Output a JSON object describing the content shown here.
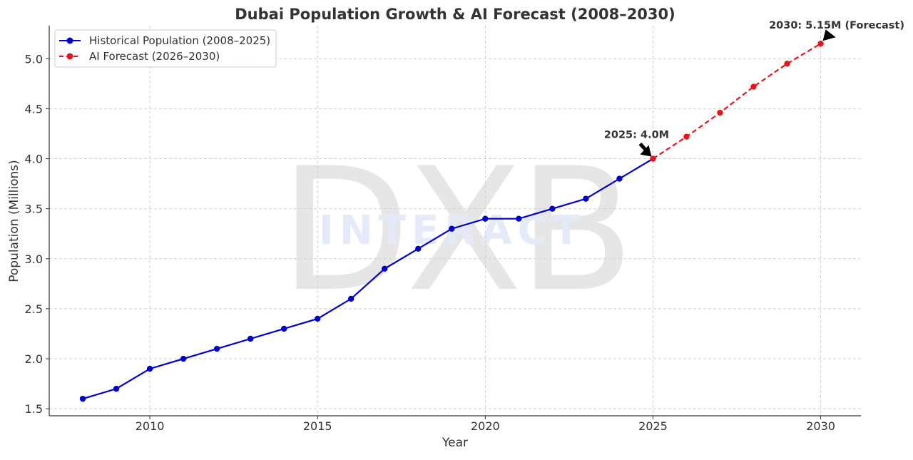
{
  "chart_data": {
    "type": "line",
    "title": "Dubai Population Growth & AI Forecast (2008–2030)",
    "xlabel": "Year",
    "ylabel": "Population (Millions)",
    "xlim": [
      2007.0,
      2031.2
    ],
    "ylim": [
      1.43,
      5.33
    ],
    "xticks": [
      2010,
      2015,
      2020,
      2025,
      2030
    ],
    "xtick_labels": [
      "2010",
      "2015",
      "2020",
      "2025",
      "2030"
    ],
    "yticks": [
      1.5,
      2.0,
      2.5,
      3.0,
      3.5,
      4.0,
      4.5,
      5.0
    ],
    "ytick_labels": [
      "1.5",
      "2.0",
      "2.5",
      "3.0",
      "3.5",
      "4.0",
      "4.5",
      "5.0"
    ],
    "grid": true,
    "legend_position": "top-left",
    "series": [
      {
        "name": "Historical Population (2008–2025)",
        "color": "#0000cc",
        "style": "solid",
        "x": [
          2008,
          2009,
          2010,
          2011,
          2012,
          2013,
          2014,
          2015,
          2016,
          2017,
          2018,
          2019,
          2020,
          2021,
          2022,
          2023,
          2024,
          2025
        ],
        "y": [
          1.6,
          1.7,
          1.9,
          2.0,
          2.1,
          2.2,
          2.3,
          2.4,
          2.6,
          2.9,
          3.1,
          3.3,
          3.4,
          3.4,
          3.5,
          3.6,
          3.8,
          4.0
        ]
      },
      {
        "name": "AI Forecast (2026–2030)",
        "color": "#e8141b",
        "style": "dashed",
        "x": [
          2025,
          2026,
          2027,
          2028,
          2029,
          2030
        ],
        "y": [
          4.0,
          4.22,
          4.46,
          4.72,
          4.95,
          5.15
        ]
      }
    ],
    "annotations": [
      {
        "text": "2025: 4.0M",
        "x": 2025,
        "y": 4.0
      },
      {
        "text": "2030: 5.15M (Forecast)",
        "x": 2030,
        "y": 5.15
      }
    ],
    "watermark": {
      "text": "DXB",
      "subtext": "INTERACT"
    }
  }
}
